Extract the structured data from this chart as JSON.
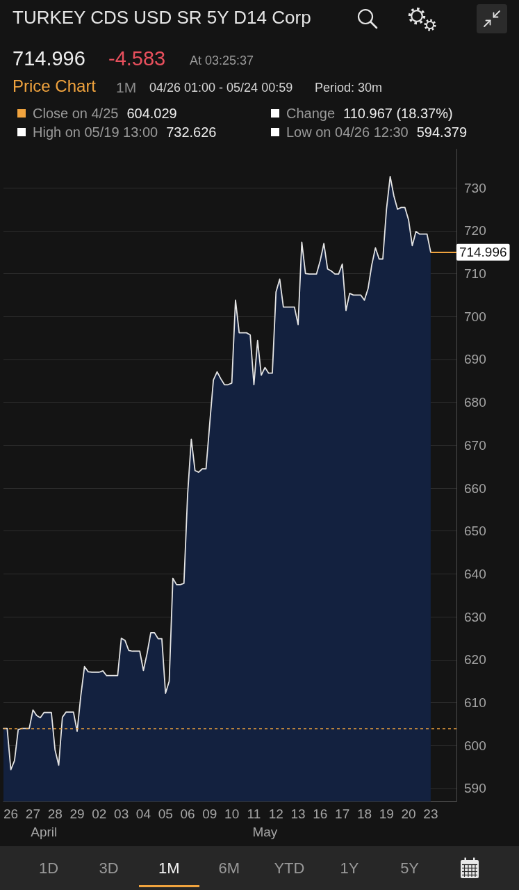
{
  "chart_data": {
    "type": "area",
    "title": "TURKEY CDS USD SR 5Y D14 Corp",
    "subtitle": "Price Chart",
    "categories": [
      null,
      null,
      "26",
      null,
      null,
      null,
      null,
      null,
      "27",
      null,
      null,
      null,
      null,
      null,
      "28",
      null,
      null,
      null,
      null,
      null,
      "29",
      null,
      null,
      null,
      null,
      null,
      "02",
      null,
      null,
      null,
      null,
      null,
      "03",
      null,
      null,
      null,
      null,
      null,
      "04",
      null,
      null,
      null,
      null,
      null,
      "05",
      null,
      null,
      null,
      null,
      null,
      "06",
      null,
      null,
      null,
      null,
      null,
      "09",
      null,
      null,
      null,
      null,
      null,
      "10",
      null,
      null,
      null,
      null,
      null,
      "11",
      null,
      null,
      null,
      null,
      null,
      "12",
      null,
      null,
      null,
      null,
      null,
      "13",
      null,
      null,
      null,
      null,
      null,
      "16",
      null,
      null,
      null,
      null,
      null,
      "17",
      null,
      null,
      null,
      null,
      null,
      "18",
      null,
      null,
      null,
      null,
      null,
      "19",
      null,
      null,
      null,
      null,
      null,
      "20",
      null,
      null,
      null,
      null,
      null,
      "23",
      null,
      null,
      null,
      null,
      null,
      null,
      null
    ],
    "series": [
      {
        "color": "#13213f",
        "values": [
          604,
          604,
          594.379,
          596.5,
          603.7,
          604,
          604,
          604,
          608.3,
          607,
          606.5,
          607.7,
          607.7,
          607.7,
          599,
          595.4,
          606.6,
          607.8,
          607.8,
          607.8,
          603.3,
          611.6,
          618.4,
          617.2,
          617.1,
          617.1,
          617.1,
          617.4,
          616.3,
          616.3,
          616.3,
          616.3,
          625,
          624.5,
          622.2,
          622,
          622,
          622,
          617.5,
          621.5,
          626.3,
          626.3,
          624.9,
          624.9,
          612.2,
          615,
          639,
          637.5,
          637.5,
          637.8,
          658.5,
          671.4,
          664.1,
          663.7,
          664.5,
          664.5,
          675,
          685.2,
          687.1,
          685.5,
          684.1,
          684.1,
          684.5,
          703.8,
          696.2,
          696.2,
          696.2,
          695.7,
          684.1,
          694.4,
          686.3,
          688.1,
          686.8,
          686.8,
          705.7,
          708.7,
          702.2,
          702.2,
          702.2,
          702.2,
          698.1,
          717.3,
          710,
          709.9,
          709.9,
          709.9,
          713,
          717,
          711.1,
          710.6,
          709.9,
          709.9,
          712.2,
          701.4,
          705.4,
          705,
          705,
          705,
          703.8,
          706.5,
          712,
          716,
          713.4,
          713.4,
          725,
          732.626,
          728.1,
          725,
          725.4,
          725.4,
          722.5,
          716.5,
          719.8,
          719.2,
          719.2,
          719.2,
          714.996,
          null,
          null,
          null,
          null,
          null,
          null,
          null
        ],
        "value_labels": [
          null,
          null,
          null,
          null,
          null,
          null,
          null,
          null,
          null,
          null,
          null,
          null,
          null,
          null,
          null,
          null,
          null,
          null,
          null,
          null,
          null,
          null,
          null,
          null,
          null,
          null,
          null,
          null,
          null,
          null,
          null,
          null,
          null,
          null,
          null,
          null,
          null,
          null,
          null,
          null,
          null,
          null,
          null,
          null,
          null,
          null,
          null,
          null,
          null,
          null,
          null,
          null,
          null,
          null,
          null,
          null,
          null,
          null,
          null,
          null,
          null,
          null,
          null,
          null,
          null,
          null,
          null,
          null,
          null,
          null,
          null,
          null,
          null,
          null,
          null,
          null,
          null,
          null,
          null,
          null,
          null,
          null,
          null,
          null,
          null,
          null,
          null,
          null,
          null,
          null,
          null,
          null,
          null,
          null,
          null,
          null,
          null,
          null,
          null,
          null,
          null,
          null,
          null,
          null,
          null,
          null,
          null,
          null,
          null,
          null,
          null,
          null,
          null,
          null,
          null,
          null,
          "714.996",
          null,
          null,
          null,
          null,
          null,
          null,
          null
        ]
      }
    ],
    "ylim": [
      587,
      739
    ],
    "yticks": [
      590,
      600,
      610,
      620,
      630,
      640,
      650,
      660,
      670,
      680,
      690,
      700,
      710,
      720,
      730
    ],
    "grid": "y",
    "ref_lines": [
      {
        "axis": "y",
        "value": 604.029,
        "label": "Close on 4/25",
        "color": "#f0a33e",
        "line_style": "dashed"
      }
    ],
    "annotations": [
      "714.996",
      "-4.583",
      "At 03:25:37",
      "1M",
      "04/26 01:00 - 05/24 00:59",
      "Period: 30m",
      "604.029",
      "Change",
      "110.967 (18.37%)",
      "High on 05/19 13:00",
      "732.626",
      "Low on 04/26 12:30",
      "594.379",
      "April",
      "May",
      "1D",
      "3D",
      "1M",
      "6M",
      "YTD",
      "1Y",
      "5Y"
    ]
  }
}
